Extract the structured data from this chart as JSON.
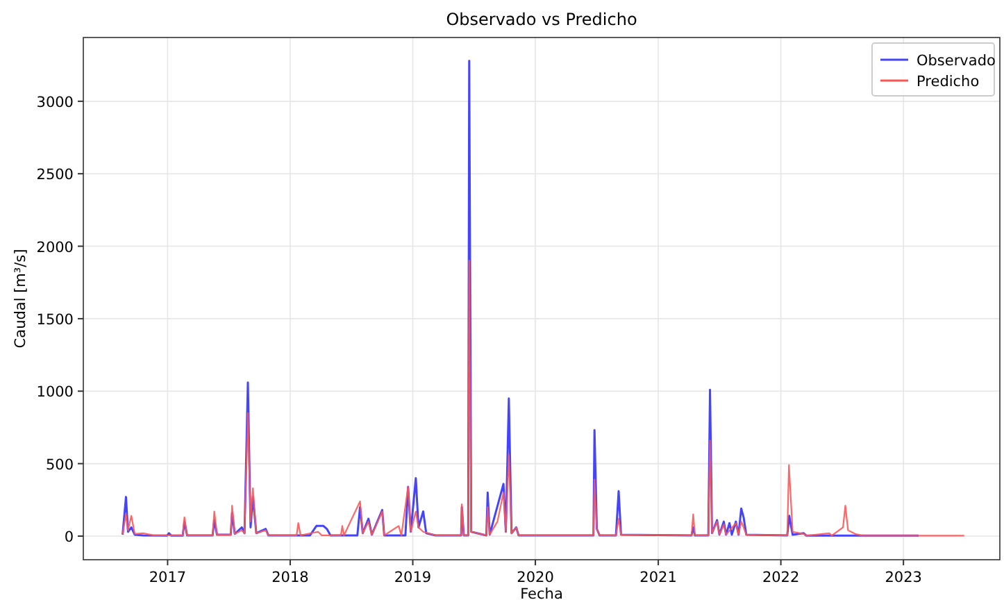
{
  "chart_data": {
    "type": "line",
    "title": "Observado vs Predicho",
    "xlabel": "Fecha",
    "ylabel": "Caudal [m³/s]",
    "xlim": [
      "2016-04-25",
      "2023-10-15"
    ],
    "ylim": [
      -163,
      3440
    ],
    "xticks": [
      {
        "value": "2017-01-01",
        "label": "2017"
      },
      {
        "value": "2018-01-01",
        "label": "2018"
      },
      {
        "value": "2019-01-01",
        "label": "2019"
      },
      {
        "value": "2020-01-01",
        "label": "2020"
      },
      {
        "value": "2021-01-01",
        "label": "2021"
      },
      {
        "value": "2022-01-01",
        "label": "2022"
      },
      {
        "value": "2023-01-01",
        "label": "2023"
      }
    ],
    "yticks": [
      0,
      500,
      1000,
      1500,
      2000,
      2500,
      3000
    ],
    "grid": true,
    "legend": "top right",
    "line_style": "solid",
    "series": [
      {
        "name": "Observado",
        "color": "#4444ff",
        "x": [
          "2016-08-20",
          "2016-08-30",
          "2016-09-05",
          "2016-09-15",
          "2016-09-25",
          "2016-10-20",
          "2016-12-30",
          "2017-01-05",
          "2017-01-12",
          "2017-02-15",
          "2017-02-20",
          "2017-02-28",
          "2017-05-15",
          "2017-05-20",
          "2017-05-28",
          "2017-07-08",
          "2017-07-12",
          "2017-07-20",
          "2017-08-10",
          "2017-08-18",
          "2017-08-28",
          "2017-09-05",
          "2017-09-12",
          "2017-09-22",
          "2017-10-20",
          "2017-10-28",
          "2018-03-01",
          "2018-03-20",
          "2018-04-10",
          "2018-04-20",
          "2018-05-01",
          "2018-07-20",
          "2018-07-28",
          "2018-08-05",
          "2018-08-22",
          "2018-09-01",
          "2018-10-02",
          "2018-10-08",
          "2018-12-10",
          "2018-12-18",
          "2018-12-26",
          "2019-01-10",
          "2019-01-18",
          "2019-02-01",
          "2019-02-10",
          "2019-03-10",
          "2019-05-25",
          "2019-05-27",
          "2019-06-02",
          "2019-06-15",
          "2019-06-18",
          "2019-06-24",
          "2019-08-08",
          "2019-08-12",
          "2019-08-18",
          "2019-09-28",
          "2019-10-05",
          "2019-10-14",
          "2019-10-22",
          "2019-11-05",
          "2019-11-12",
          "2020-06-22",
          "2020-06-25",
          "2020-07-02",
          "2020-07-10",
          "2020-08-28",
          "2020-09-05",
          "2020-09-12",
          "2021-04-10",
          "2021-04-15",
          "2021-04-20",
          "2021-05-30",
          "2021-06-04",
          "2021-06-10",
          "2021-06-25",
          "2021-07-02",
          "2021-07-15",
          "2021-07-22",
          "2021-08-01",
          "2021-08-08",
          "2021-08-20",
          "2021-08-28",
          "2021-09-05",
          "2021-09-12",
          "2021-09-20",
          "2022-01-20",
          "2022-01-26",
          "2022-02-05",
          "2022-03-10",
          "2022-03-18",
          "2023-02-15"
        ],
        "values": [
          10,
          270,
          30,
          60,
          10,
          5,
          3,
          20,
          3,
          3,
          100,
          5,
          5,
          110,
          10,
          10,
          160,
          15,
          60,
          20,
          1060,
          60,
          270,
          20,
          50,
          5,
          5,
          70,
          70,
          50,
          5,
          5,
          200,
          20,
          120,
          10,
          180,
          5,
          5,
          340,
          30,
          400,
          60,
          170,
          20,
          5,
          5,
          200,
          5,
          5,
          3280,
          30,
          5,
          300,
          10,
          360,
          30,
          950,
          20,
          60,
          5,
          5,
          730,
          50,
          5,
          5,
          310,
          10,
          5,
          60,
          5,
          5,
          1010,
          20,
          110,
          10,
          100,
          10,
          90,
          10,
          100,
          10,
          190,
          130,
          10,
          5,
          140,
          10,
          20,
          3,
          3
        ]
      },
      {
        "name": "Predicho",
        "color": "#ff5555",
        "x": [
          "2016-08-20",
          "2016-08-30",
          "2016-09-05",
          "2016-09-15",
          "2016-09-25",
          "2016-10-20",
          "2016-11-20",
          "2017-02-15",
          "2017-02-20",
          "2017-02-28",
          "2017-05-15",
          "2017-05-20",
          "2017-05-28",
          "2017-07-08",
          "2017-07-12",
          "2017-07-20",
          "2017-08-10",
          "2017-08-18",
          "2017-08-28",
          "2017-09-05",
          "2017-09-12",
          "2017-09-22",
          "2017-10-20",
          "2017-10-28",
          "2018-01-20",
          "2018-01-25",
          "2018-02-01",
          "2018-03-25",
          "2018-04-05",
          "2018-06-01",
          "2018-06-05",
          "2018-06-10",
          "2018-07-28",
          "2018-08-05",
          "2018-08-22",
          "2018-09-01",
          "2018-10-02",
          "2018-10-08",
          "2018-11-20",
          "2018-11-28",
          "2018-12-18",
          "2018-12-26",
          "2019-01-10",
          "2019-01-18",
          "2019-02-01",
          "2019-03-10",
          "2019-05-25",
          "2019-05-27",
          "2019-06-02",
          "2019-06-15",
          "2019-06-18",
          "2019-06-24",
          "2019-08-08",
          "2019-08-12",
          "2019-08-18",
          "2019-09-10",
          "2019-09-28",
          "2019-10-05",
          "2019-10-14",
          "2019-10-22",
          "2019-11-05",
          "2019-11-12",
          "2020-06-22",
          "2020-06-25",
          "2020-07-02",
          "2020-07-10",
          "2020-08-28",
          "2020-09-05",
          "2020-09-12",
          "2021-04-10",
          "2021-04-15",
          "2021-04-20",
          "2021-05-30",
          "2021-06-04",
          "2021-06-10",
          "2021-06-25",
          "2021-07-02",
          "2021-07-15",
          "2021-07-22",
          "2021-08-20",
          "2021-08-28",
          "2021-09-05",
          "2021-09-12",
          "2021-09-20",
          "2022-01-20",
          "2022-01-25",
          "2022-02-05",
          "2022-03-10",
          "2022-03-18",
          "2022-05-25",
          "2022-06-01",
          "2022-07-05",
          "2022-07-12",
          "2022-07-20",
          "2022-08-10",
          "2022-09-01",
          "2023-07-01"
        ],
        "values": [
          15,
          150,
          40,
          140,
          15,
          20,
          5,
          5,
          130,
          5,
          5,
          170,
          10,
          10,
          210,
          15,
          40,
          20,
          850,
          100,
          330,
          20,
          40,
          5,
          5,
          90,
          5,
          30,
          5,
          5,
          70,
          5,
          240,
          20,
          100,
          10,
          170,
          5,
          70,
          5,
          340,
          30,
          170,
          60,
          30,
          5,
          5,
          220,
          5,
          5,
          1900,
          30,
          5,
          200,
          10,
          100,
          300,
          30,
          560,
          20,
          60,
          5,
          5,
          390,
          50,
          5,
          5,
          120,
          10,
          5,
          150,
          5,
          5,
          660,
          20,
          100,
          10,
          80,
          10,
          90,
          10,
          100,
          60,
          10,
          5,
          490,
          30,
          15,
          3,
          20,
          3,
          60,
          210,
          40,
          15,
          3,
          3
        ]
      }
    ]
  }
}
